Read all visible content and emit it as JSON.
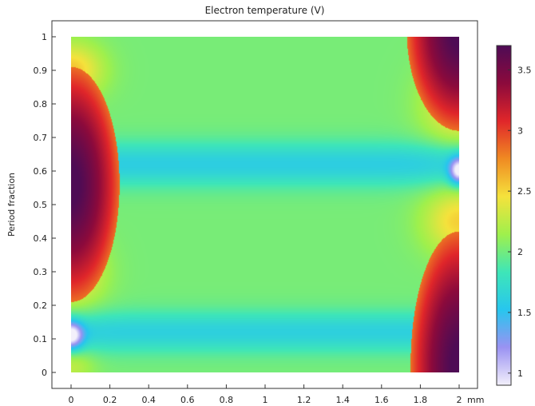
{
  "chart_data": {
    "type": "heatmap",
    "title": "Electron temperature (V)",
    "xlabel": "",
    "ylabel": "Period fraction",
    "x_unit": "mm",
    "xlim": [
      0,
      2
    ],
    "ylim": [
      0,
      1
    ],
    "x_ticks": [
      "0",
      "0.2",
      "0.4",
      "0.6",
      "0.8",
      "1",
      "1.2",
      "1.4",
      "1.6",
      "1.8",
      "2"
    ],
    "y_ticks": [
      "0",
      "0.1",
      "0.2",
      "0.3",
      "0.4",
      "0.5",
      "0.6",
      "0.7",
      "0.8",
      "0.9",
      "1"
    ],
    "colorbar": {
      "range": [
        0.9,
        3.7
      ],
      "ticks": [
        "1",
        "1.5",
        "2",
        "2.5",
        "3",
        "3.5"
      ],
      "colormap": "rainbow-light",
      "colors": [
        "#f3f0fb",
        "#9a92f2",
        "#27c6ee",
        "#3ee6b8",
        "#9ff04c",
        "#f5e23c",
        "#f08a22",
        "#e0262a",
        "#8c0a3c",
        "#4e0b55"
      ]
    },
    "grid": false,
    "features": [
      {
        "description": "hot lobe at left electrode",
        "x_center": 0.0,
        "y_center": 0.56,
        "x_extent": 0.25,
        "y_range": [
          0.22,
          0.92
        ],
        "peak_value": 3.7
      },
      {
        "description": "hot lobe at upper right electrode",
        "x_center": 2.0,
        "y_center": 1.0,
        "x_extent": 0.25,
        "y_range": [
          0.72,
          1.0
        ],
        "peak_value": 3.7
      },
      {
        "description": "hot lobe at lower right electrode",
        "x_center": 2.0,
        "y_center": 0.05,
        "x_extent": 0.25,
        "y_range": [
          0.0,
          0.42
        ],
        "peak_value": 3.7
      },
      {
        "description": "cool band in bulk",
        "y_center": 0.62,
        "value": 1.6
      },
      {
        "description": "cool band in bulk",
        "y_center": 0.12,
        "value": 1.6
      },
      {
        "description": "cold spot near right electrode",
        "x_center": 2.0,
        "y_center": 0.6,
        "value": 1.0
      },
      {
        "description": "cold spot near left electrode",
        "x_center": 0.0,
        "y_center": 0.11,
        "value": 1.0
      }
    ]
  }
}
